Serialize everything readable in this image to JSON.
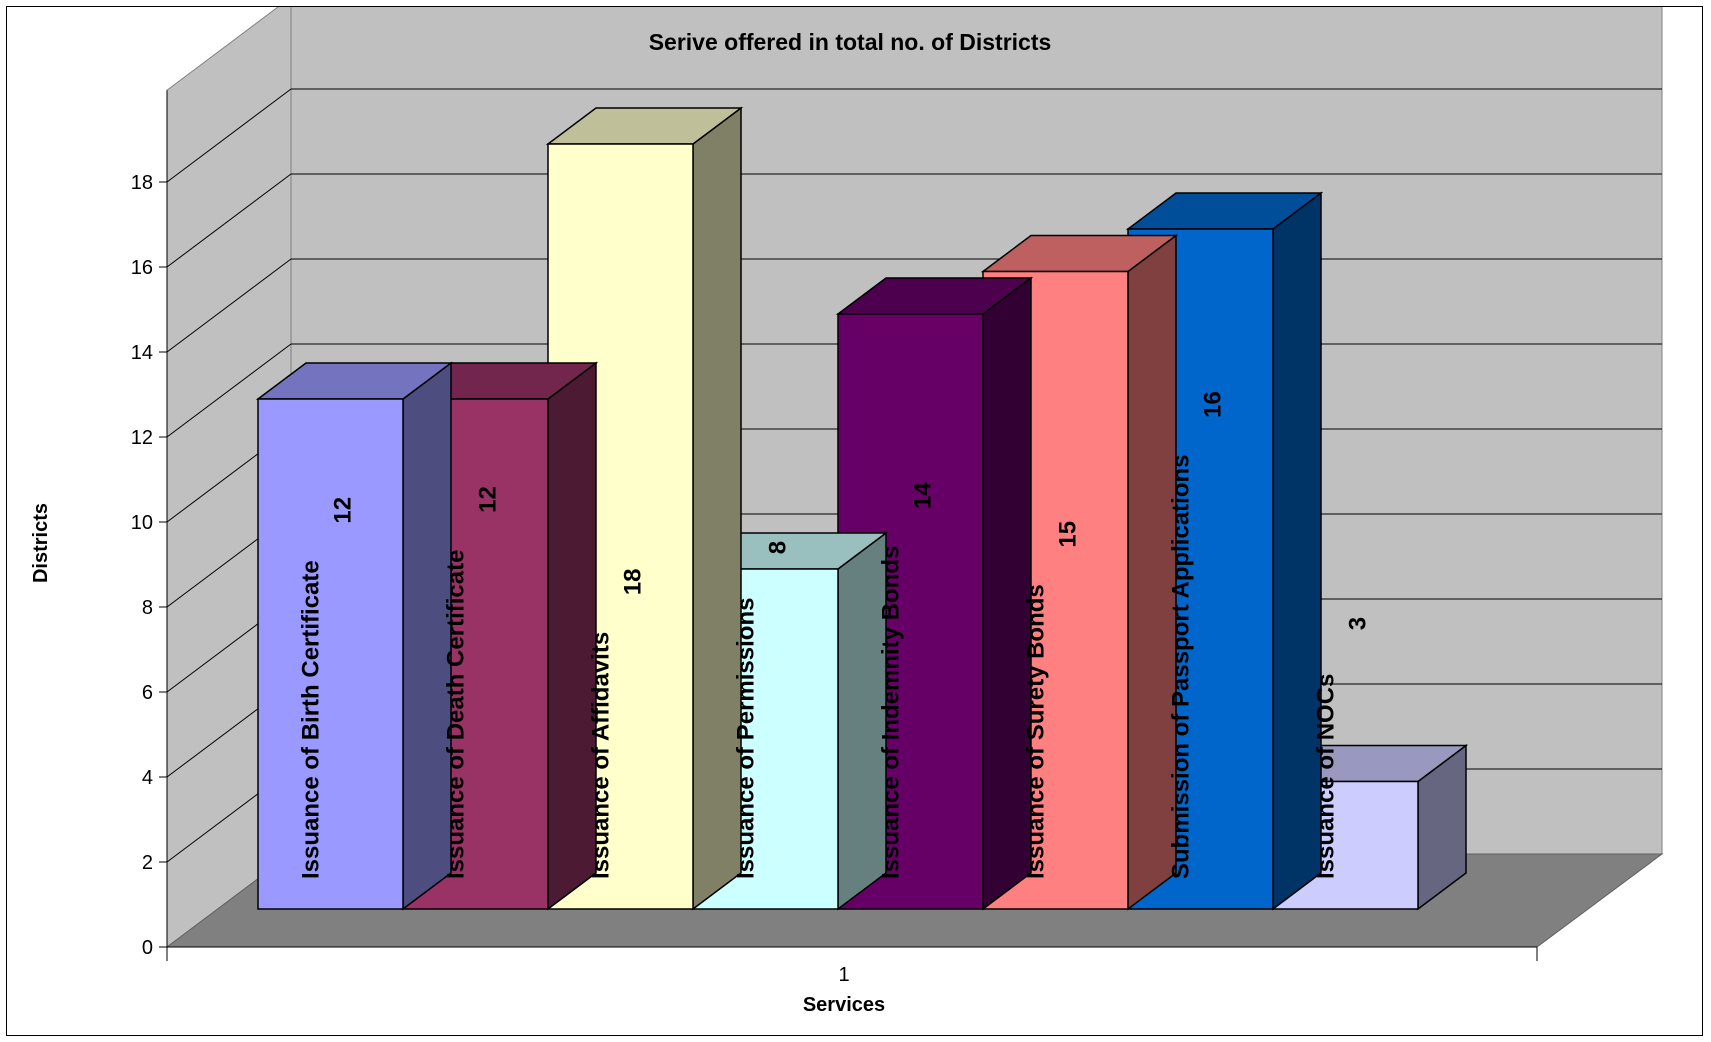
{
  "chart_data": {
    "type": "bar",
    "title": "Serive offered in total no. of Districts",
    "xlabel": "Services",
    "ylabel": "Districts",
    "categories": [
      "1"
    ],
    "ylim": [
      0,
      18
    ],
    "yticks": [
      0,
      2,
      4,
      6,
      8,
      10,
      12,
      14,
      16,
      18
    ],
    "grid": true,
    "legend": "none",
    "style": "3d-clustered-column",
    "series": [
      {
        "name": "Issuance of Birth Certificate",
        "values": [
          12
        ],
        "color": "#9999FF",
        "label_color": "#000000"
      },
      {
        "name": "Issuance of Death Certificate",
        "values": [
          12
        ],
        "color": "#993366",
        "label_color": "#FFFFFF"
      },
      {
        "name": "Issuance of Affidavits",
        "values": [
          18
        ],
        "color": "#FFFFCC",
        "label_color": "#000000"
      },
      {
        "name": "Issuance of Permissions",
        "values": [
          8
        ],
        "color": "#CCFFFF",
        "label_color": "#000000"
      },
      {
        "name": "Issuance of Indemnity Bonds",
        "values": [
          14
        ],
        "color": "#660066",
        "label_color": "#FFFFFF"
      },
      {
        "name": "Issuance of Surety Bonds",
        "values": [
          15
        ],
        "color": "#FF8080",
        "label_color": "#000000"
      },
      {
        "name": "Submission of Passport Applications",
        "values": [
          16
        ],
        "color": "#0066CC",
        "label_color": "#FFFFFF"
      },
      {
        "name": "Issuance of NOCs",
        "values": [
          3
        ],
        "color": "#CCCCFF",
        "label_color": "#000000"
      }
    ],
    "wall_color": "#C0C0C0",
    "floor_color": "#808080"
  }
}
